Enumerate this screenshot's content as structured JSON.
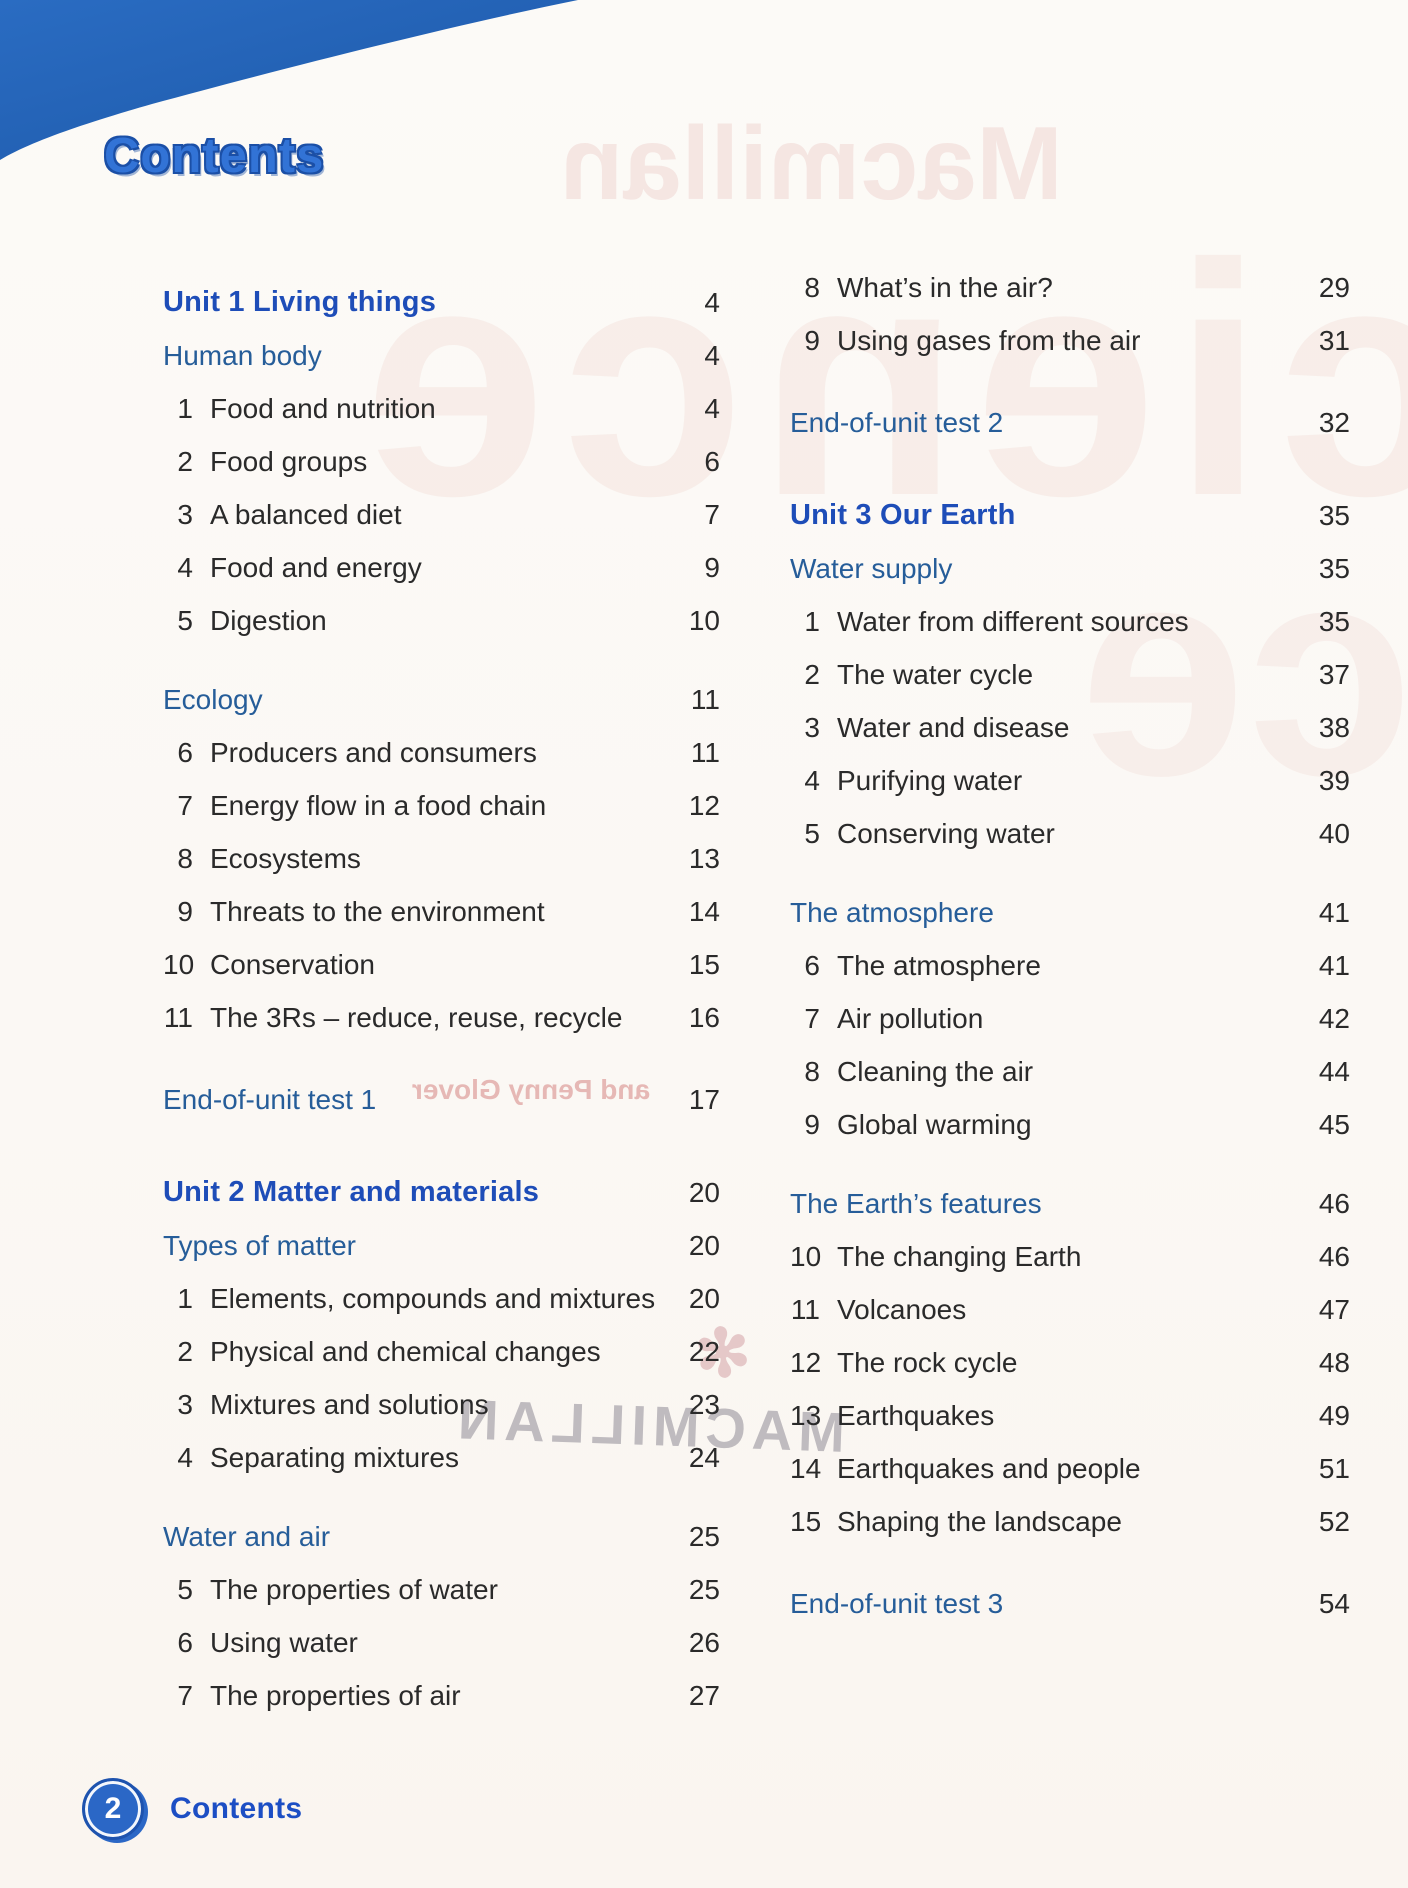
{
  "page": {
    "title": "Contents",
    "footer": {
      "page_number": "2",
      "label": "Contents"
    }
  },
  "colors": {
    "corner_blue": "#2262b4",
    "title_blue": "#3273d6",
    "title_outline_blue": "#1b4fa6",
    "unit_heading_blue": "#1e4db8",
    "section_heading_blue": "#265d99",
    "body_text": "#2a2a2a",
    "footer_blue": "#1c4ec4",
    "paper": "#fcfaf7"
  },
  "toc": {
    "left_column": [
      {
        "type": "unit",
        "label": "Unit 1 Living things",
        "page": "4"
      },
      {
        "type": "section",
        "label": "Human body",
        "page": "4"
      },
      {
        "type": "item",
        "num": "1",
        "label": "Food and nutrition",
        "page": "4"
      },
      {
        "type": "item",
        "num": "2",
        "label": "Food groups",
        "page": "6"
      },
      {
        "type": "item",
        "num": "3",
        "label": "A balanced diet",
        "page": "7"
      },
      {
        "type": "item",
        "num": "4",
        "label": "Food and energy",
        "page": "9"
      },
      {
        "type": "item",
        "num": "5",
        "label": "Digestion",
        "page": "10"
      },
      {
        "type": "section",
        "label": "Ecology",
        "page": "11"
      },
      {
        "type": "item",
        "num": "6",
        "label": "Producers and consumers",
        "page": "11"
      },
      {
        "type": "item",
        "num": "7",
        "label": "Energy flow in a food chain",
        "page": "12"
      },
      {
        "type": "item",
        "num": "8",
        "label": "Ecosystems",
        "page": "13"
      },
      {
        "type": "item",
        "num": "9",
        "label": "Threats to the environment",
        "page": "14"
      },
      {
        "type": "item",
        "num": "10",
        "label": "Conservation",
        "page": "15"
      },
      {
        "type": "item",
        "num": "11",
        "label": "The 3Rs – reduce, reuse, recycle",
        "page": "16"
      },
      {
        "type": "test",
        "label": "End-of-unit test 1",
        "page": "17"
      },
      {
        "type": "unit",
        "label": "Unit 2 Matter and materials",
        "page": "20"
      },
      {
        "type": "section",
        "label": "Types of matter",
        "page": "20"
      },
      {
        "type": "item",
        "num": "1",
        "label": "Elements, compounds and mixtures",
        "page": "20"
      },
      {
        "type": "item",
        "num": "2",
        "label": "Physical and chemical changes",
        "page": "22"
      },
      {
        "type": "item",
        "num": "3",
        "label": "Mixtures and solutions",
        "page": "23"
      },
      {
        "type": "item",
        "num": "4",
        "label": "Separating mixtures",
        "page": "24"
      },
      {
        "type": "section",
        "label": "Water and air",
        "page": "25"
      },
      {
        "type": "item",
        "num": "5",
        "label": "The properties of water",
        "page": "25"
      },
      {
        "type": "item",
        "num": "6",
        "label": "Using water",
        "page": "26"
      },
      {
        "type": "item",
        "num": "7",
        "label": "The properties of air",
        "page": "27"
      }
    ],
    "right_column": [
      {
        "type": "item",
        "num": "8",
        "label": "What’s in the air?",
        "page": "29"
      },
      {
        "type": "item",
        "num": "9",
        "label": "Using gases from the air",
        "page": "31"
      },
      {
        "type": "test",
        "label": "End-of-unit test 2",
        "page": "32"
      },
      {
        "type": "unit",
        "label": "Unit 3 Our Earth",
        "page": "35"
      },
      {
        "type": "section",
        "label": "Water supply",
        "page": "35"
      },
      {
        "type": "item",
        "num": "1",
        "label": "Water from different sources",
        "page": "35"
      },
      {
        "type": "item",
        "num": "2",
        "label": "The water cycle",
        "page": "37"
      },
      {
        "type": "item",
        "num": "3",
        "label": "Water and disease",
        "page": "38"
      },
      {
        "type": "item",
        "num": "4",
        "label": "Purifying water",
        "page": "39"
      },
      {
        "type": "item",
        "num": "5",
        "label": "Conserving water",
        "page": "40"
      },
      {
        "type": "section",
        "label": "The atmosphere",
        "page": "41"
      },
      {
        "type": "item",
        "num": "6",
        "label": "The atmosphere",
        "page": "41"
      },
      {
        "type": "item",
        "num": "7",
        "label": "Air pollution",
        "page": "42"
      },
      {
        "type": "item",
        "num": "8",
        "label": "Cleaning the air",
        "page": "44"
      },
      {
        "type": "item",
        "num": "9",
        "label": "Global warming",
        "page": "45"
      },
      {
        "type": "section",
        "label": "The Earth’s features",
        "page": "46"
      },
      {
        "type": "item",
        "num": "10",
        "label": "The changing Earth",
        "page": "46"
      },
      {
        "type": "item",
        "num": "11",
        "label": "Volcanoes",
        "page": "47"
      },
      {
        "type": "item",
        "num": "12",
        "label": "The rock cycle",
        "page": "48"
      },
      {
        "type": "item",
        "num": "13",
        "label": "Earthquakes",
        "page": "49"
      },
      {
        "type": "item",
        "num": "14",
        "label": "Earthquakes and people",
        "page": "51"
      },
      {
        "type": "item",
        "num": "15",
        "label": "Shaping the landscape",
        "page": "52"
      },
      {
        "type": "test",
        "label": "End-of-unit test 3",
        "page": "54"
      }
    ]
  },
  "bleed_through": {
    "cover_title_line1": "Macmillan",
    "cover_title_line2": "Science",
    "cover_title_line3": "ce",
    "authors": "and Penny Glover",
    "logo_glyph": "✻",
    "publisher": "MACMILLAN"
  }
}
